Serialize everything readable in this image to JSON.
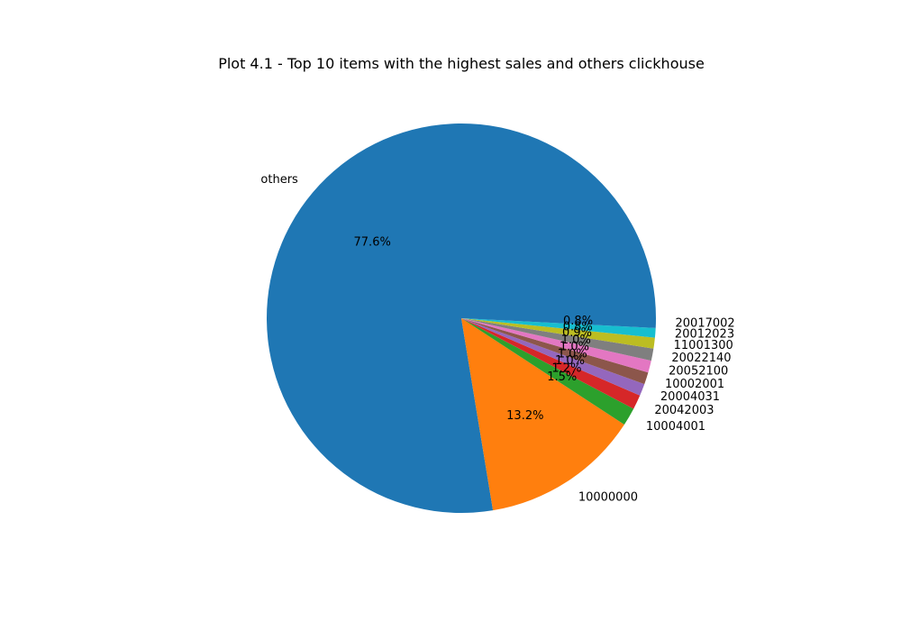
{
  "chart_data": {
    "type": "pie",
    "title": "Plot 4.1 - Top 10 items with the highest sales and others clickhouse",
    "start_angle_deg": 0,
    "direction": "counterclockwise",
    "slices": [
      {
        "label": "others",
        "value": 77.6,
        "pct_label": "77.6%",
        "color": "#1f77b4"
      },
      {
        "label": "10000000",
        "value": 13.2,
        "pct_label": "13.2%",
        "color": "#ff7f0e"
      },
      {
        "label": "10004001",
        "value": 1.5,
        "pct_label": "1.5%",
        "color": "#2ca02c"
      },
      {
        "label": "20042003",
        "value": 1.2,
        "pct_label": "1.2%",
        "color": "#d62728"
      },
      {
        "label": "20004031",
        "value": 1.0,
        "pct_label": "1.0%",
        "color": "#9467bd"
      },
      {
        "label": "10002001",
        "value": 1.0,
        "pct_label": "1.0%",
        "color": "#8c564b"
      },
      {
        "label": "20052100",
        "value": 1.0,
        "pct_label": "1.0%",
        "color": "#e377c2"
      },
      {
        "label": "20022140",
        "value": 1.0,
        "pct_label": "1.0%",
        "color": "#7f7f7f"
      },
      {
        "label": "11001300",
        "value": 0.9,
        "pct_label": "0.9%",
        "color": "#bcbd22"
      },
      {
        "label": "20012023",
        "value": 0.8,
        "pct_label": "0.8%",
        "color": "#17becf"
      },
      {
        "label": "20017002",
        "value": 0.8,
        "pct_label": "0.8%",
        "color": "#1f77b4"
      }
    ]
  }
}
